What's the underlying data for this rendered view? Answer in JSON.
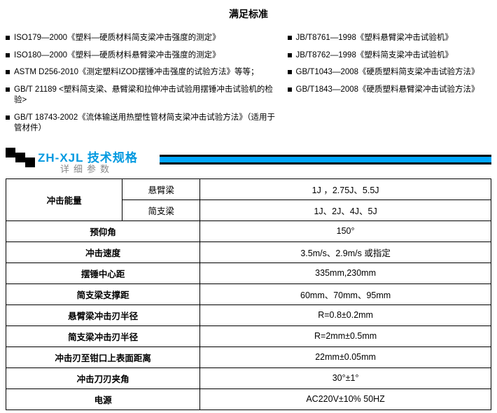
{
  "title": "满足标准",
  "standards_left": [
    "ISO179—2000《塑料—硬质材料简支梁冲击强度的测定》",
    "ISO180—2000《塑料—硬质材料悬臂梁冲击强度的测定》",
    "ASTM D256-2010《测定塑料IZOD摆锤冲击强度的试验方法》等等；",
    "GB/T 21189 <塑料简支梁、悬臂梁和拉伸冲击试验用摆锤冲击试验机的检验>",
    "GB/T 18743-2002《流体输送用热塑性管材简支梁冲击试验方法》（适用于管材件）"
  ],
  "standards_right": [
    "JB/T8761—1998《塑料悬臂梁冲击试验机》",
    "JB/T8762—1998《塑料简支梁冲击试验机》",
    "GB/T1043—2008《硬质塑料简支梁冲击试验方法》",
    "GB/T1843—2008《硬质塑料悬臂梁冲击试验方法》"
  ],
  "section": {
    "title": "ZH-XJL 技术规格",
    "sub": "详细参数"
  },
  "spec": {
    "col1_w": "24%",
    "col2_w": "16%",
    "col3_w": "60%",
    "rows": [
      {
        "label": "冲击能量",
        "sub1_label": "悬臂梁",
        "sub1_value": "1J ，2.75J、5.5J",
        "sub2_label": "简支梁",
        "sub2_value": "1J、2J、4J、5J"
      },
      {
        "label": "预仰角",
        "value": "150°"
      },
      {
        "label": "冲击速度",
        "value": "3.5m/s、2.9m/s 或指定"
      },
      {
        "label": "摆锤中心距",
        "value": "335mm,230mm"
      },
      {
        "label": "简支梁支撑距",
        "value": "60mm、70mm、95mm"
      },
      {
        "label": "悬臂梁冲击刃半径",
        "value": "R=0.8±0.2mm"
      },
      {
        "label": "简支梁冲击刃半径",
        "value": "R=2mm±0.5mm"
      },
      {
        "label": "冲击刃至钳口上表面距离",
        "value": "22mm±0.05mm"
      },
      {
        "label": "冲击刀刃夹角",
        "value": "30°±1°"
      },
      {
        "label": "电源",
        "value": "AC220V±10%   50HZ"
      }
    ]
  }
}
